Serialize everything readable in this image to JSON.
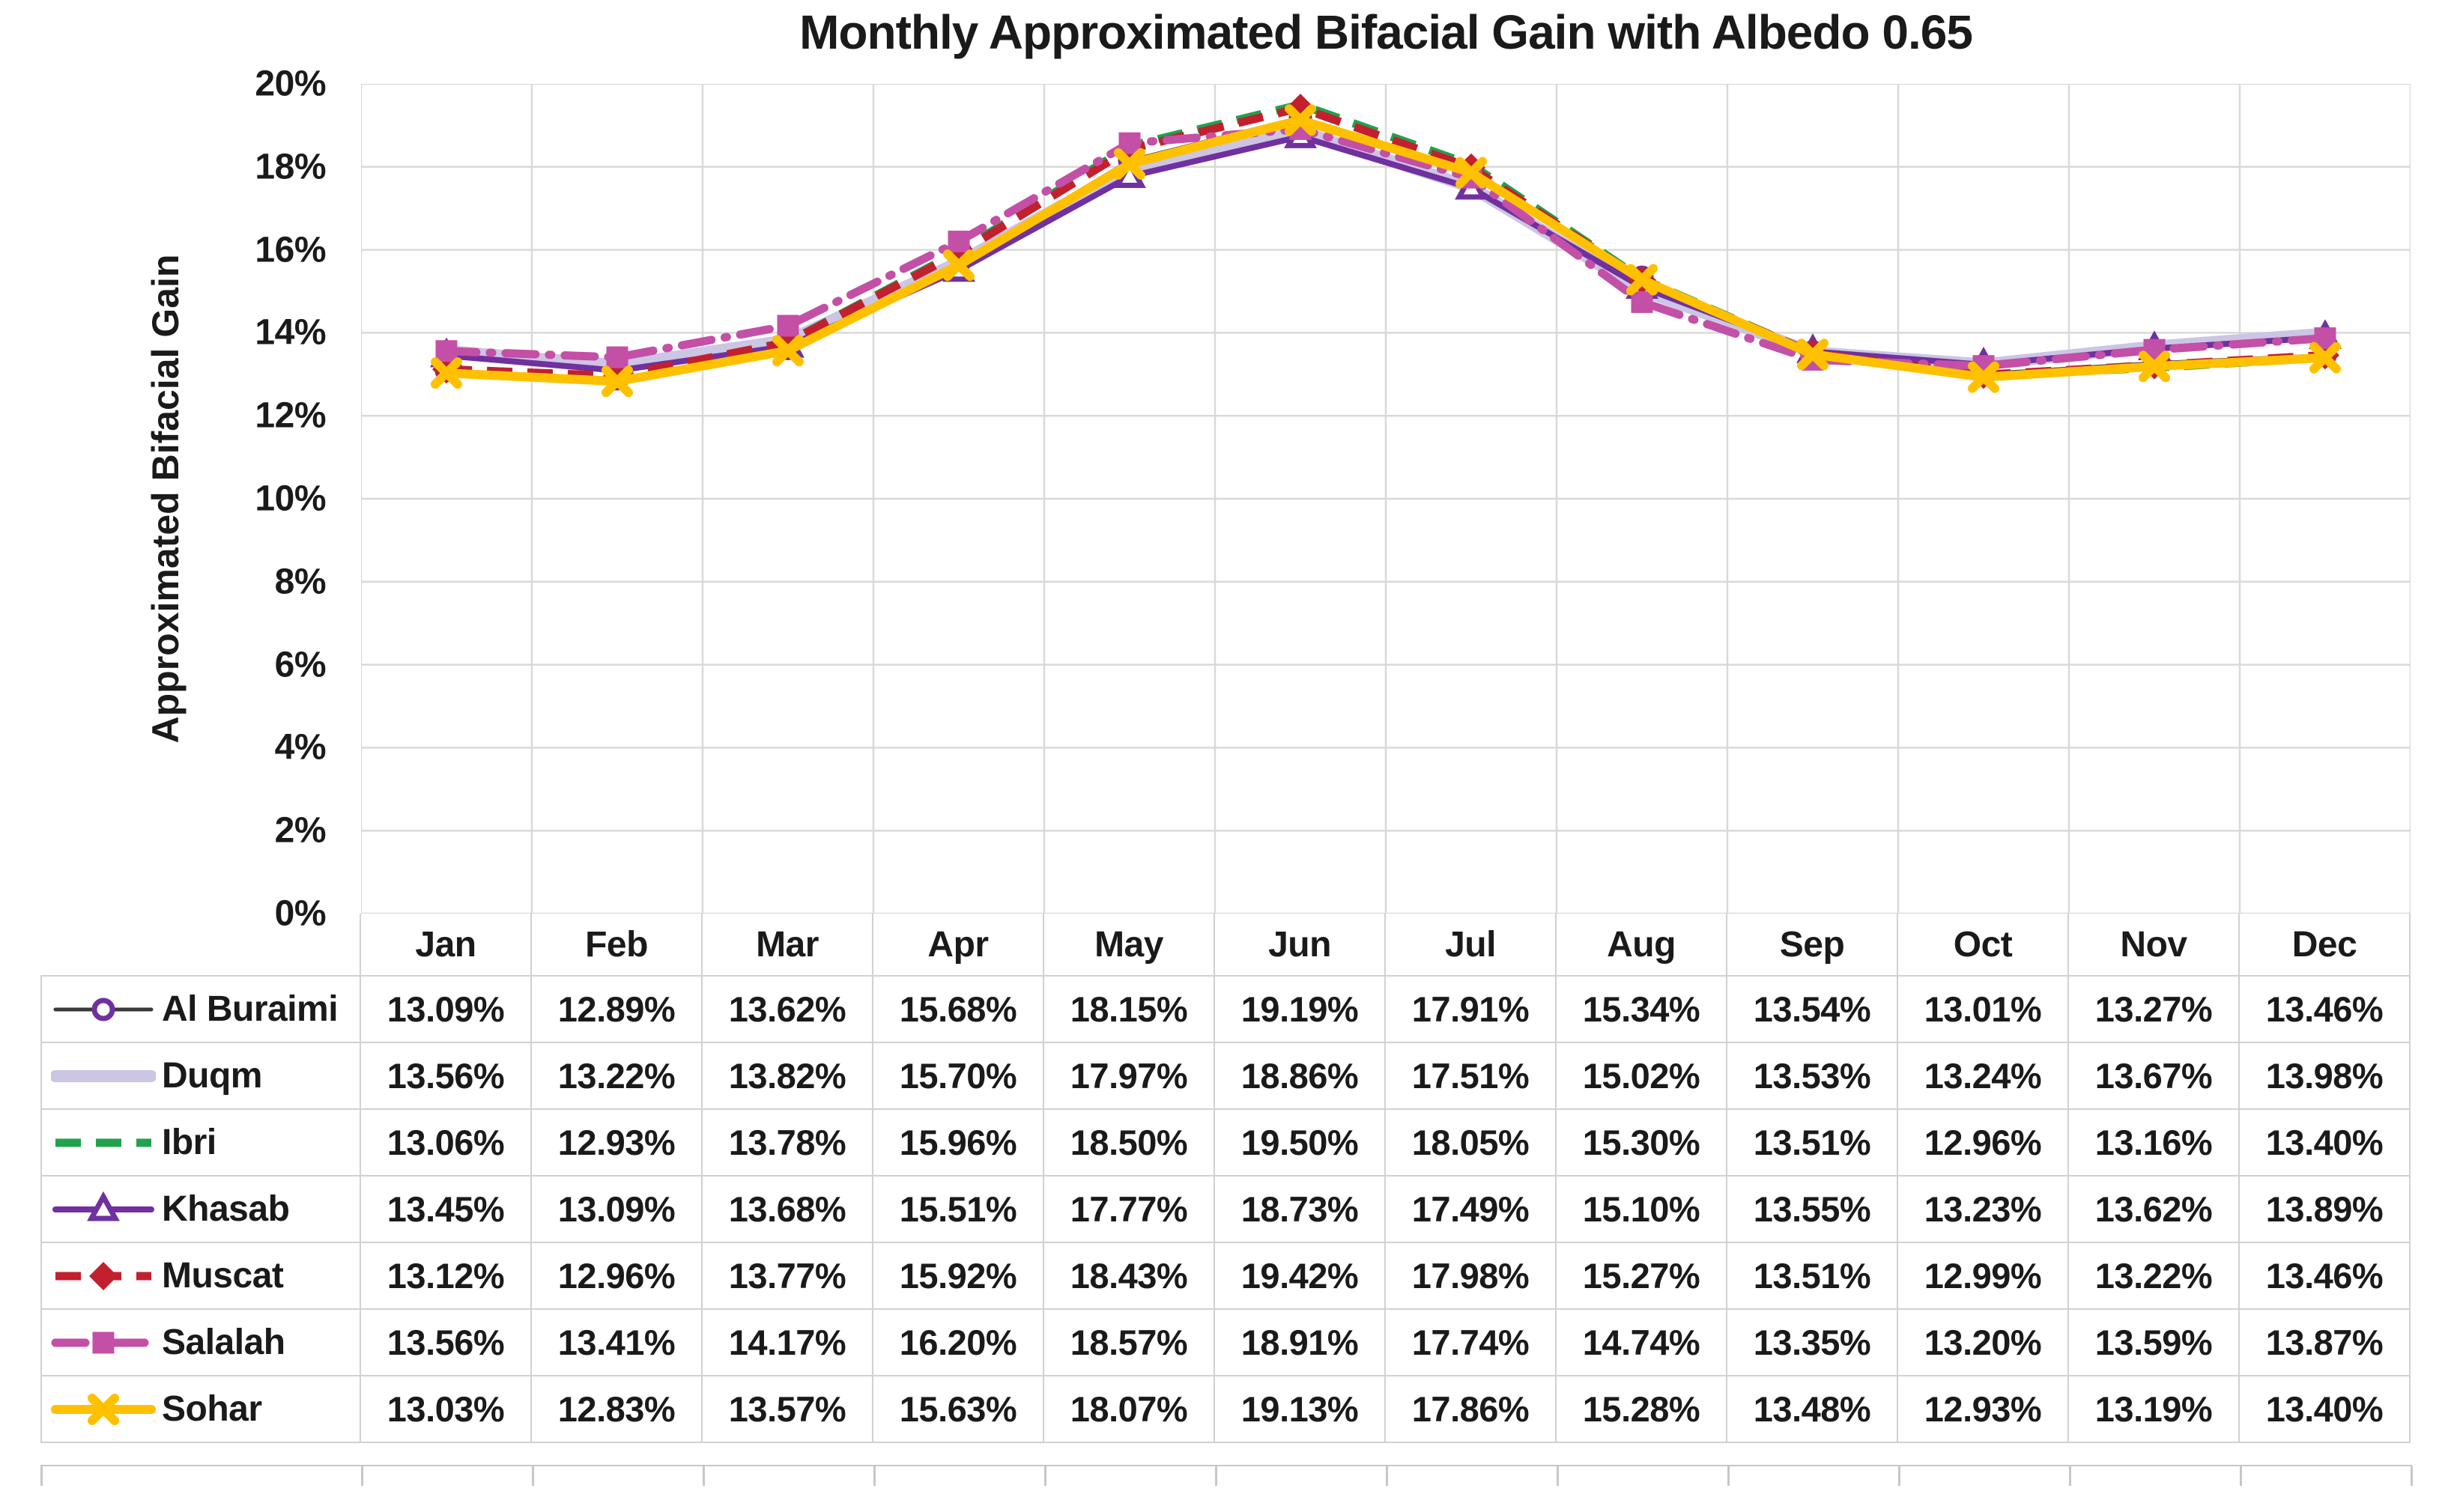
{
  "title": "Monthly Approximated Bifacial Gain with Albedo 0.65",
  "y_axis": {
    "title": "Approximated Bifacial Gain",
    "tick_labels": [
      "20%",
      "18%",
      "16%",
      "14%",
      "12%",
      "10%",
      "8%",
      "6%",
      "4%",
      "2%",
      "0%"
    ],
    "min": 0,
    "max": 20,
    "step": 2
  },
  "months": [
    "Jan",
    "Feb",
    "Mar",
    "Apr",
    "May",
    "Jun",
    "Jul",
    "Aug",
    "Sep",
    "Oct",
    "Nov",
    "Dec"
  ],
  "value_suffix": "%",
  "value_decimals": 2,
  "grid_color": "#D9D9D9",
  "table_border_color": "#D2D0D0",
  "chart_data": {
    "type": "line",
    "title": "Monthly Approximated Bifacial Gain with Albedo 0.65",
    "xlabel": "",
    "ylabel": "Approximated Bifacial Gain",
    "ylim": [
      0,
      20
    ],
    "grid": true,
    "legend_position": "table-left",
    "categories": [
      "Jan",
      "Feb",
      "Mar",
      "Apr",
      "May",
      "Jun",
      "Jul",
      "Aug",
      "Sep",
      "Oct",
      "Nov",
      "Dec"
    ],
    "series": [
      {
        "name": "Al Buraimi",
        "values": [
          13.09,
          12.89,
          13.62,
          15.68,
          18.15,
          19.19,
          17.91,
          15.34,
          13.54,
          13.01,
          13.27,
          13.46
        ],
        "color": "#3A3A3A",
        "width": 5,
        "dash": "solid",
        "marker": "circle-open",
        "marker_color": "#7030A0"
      },
      {
        "name": "Duqm",
        "values": [
          13.56,
          13.22,
          13.82,
          15.7,
          17.97,
          18.86,
          17.51,
          15.02,
          13.53,
          13.24,
          13.67,
          13.98
        ],
        "color": "#CCC5E4",
        "width": 16,
        "dash": "solid",
        "marker": "none",
        "marker_color": "#CCC5E4"
      },
      {
        "name": "Ibri",
        "values": [
          13.06,
          12.93,
          13.78,
          15.96,
          18.5,
          19.5,
          18.05,
          15.3,
          13.51,
          12.96,
          13.16,
          13.4
        ],
        "color": "#21A14C",
        "width": 11,
        "dash": "dashed",
        "marker": "none",
        "marker_color": "#21A14C"
      },
      {
        "name": "Khasab",
        "values": [
          13.45,
          13.09,
          13.68,
          15.51,
          17.77,
          18.73,
          17.49,
          15.1,
          13.55,
          13.23,
          13.62,
          13.89
        ],
        "color": "#7030A0",
        "width": 8,
        "dash": "solid",
        "marker": "triangle-open",
        "marker_color": "#7030A0"
      },
      {
        "name": "Muscat",
        "values": [
          13.12,
          12.96,
          13.77,
          15.92,
          18.43,
          19.42,
          17.98,
          15.27,
          13.51,
          12.99,
          13.22,
          13.46
        ],
        "color": "#C2202E",
        "width": 11,
        "dash": "dashed",
        "marker": "diamond",
        "marker_color": "#C2202E"
      },
      {
        "name": "Salalah",
        "values": [
          13.56,
          13.41,
          14.17,
          16.2,
          18.57,
          18.91,
          17.74,
          14.74,
          13.35,
          13.2,
          13.59,
          13.87
        ],
        "color": "#C44FA6",
        "width": 11,
        "dash": "dash-dot",
        "marker": "square",
        "marker_color": "#C44FA6"
      },
      {
        "name": "Sohar",
        "values": [
          13.03,
          12.83,
          13.57,
          15.63,
          18.07,
          19.13,
          17.86,
          15.28,
          13.48,
          12.93,
          13.19,
          13.4
        ],
        "color": "#FFC000",
        "width": 12,
        "dash": "solid",
        "marker": "x",
        "marker_color": "#FFC000"
      }
    ]
  }
}
